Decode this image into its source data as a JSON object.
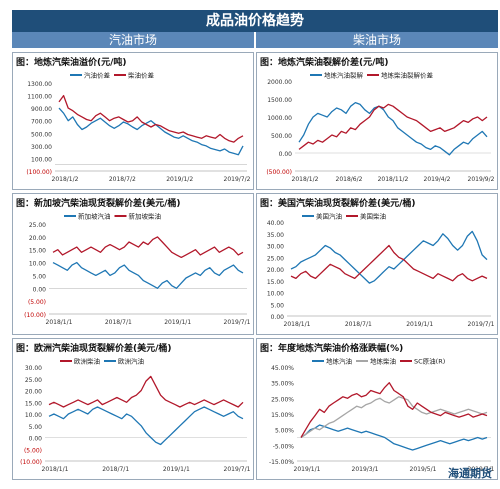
{
  "header": {
    "title": "成品油价格趋势",
    "left_section": "汽油市场",
    "right_section": "柴油市场"
  },
  "watermark": "海通期货",
  "chart_data": [
    {
      "id": "p1",
      "type": "line",
      "title": "图：地炼汽柴油溢价(元/吨)",
      "yticks": [
        "1300.00",
        "1100.00",
        "900.00",
        "700.00",
        "500.00",
        "300.00",
        "100.00",
        "(100.00)"
      ],
      "ylim": [
        -100,
        1300
      ],
      "xticks": [
        "2018/1/2",
        "2018/7/2",
        "2019/1/2",
        "2019/7/2"
      ],
      "series": [
        {
          "name": "汽油价差",
          "color": "#1f77b4",
          "values": [
            900,
            820,
            700,
            760,
            640,
            560,
            600,
            660,
            700,
            740,
            680,
            620,
            580,
            620,
            680,
            650,
            600,
            560,
            620,
            660,
            700,
            640,
            580,
            520,
            480,
            440,
            420,
            460,
            420,
            380,
            360,
            320,
            300,
            260,
            240,
            220,
            250,
            200,
            180,
            160,
            300
          ]
        },
        {
          "name": "柴油价差",
          "color": "#b2182b",
          "values": [
            1000,
            1100,
            900,
            860,
            800,
            760,
            720,
            700,
            780,
            820,
            760,
            700,
            740,
            760,
            720,
            680,
            700,
            760,
            680,
            640,
            600,
            640,
            620,
            580,
            540,
            520,
            500,
            520,
            480,
            460,
            440,
            420,
            460,
            440,
            420,
            480,
            420,
            380,
            360,
            420,
            460
          ]
        }
      ]
    },
    {
      "id": "p2",
      "type": "line",
      "title": "图：地炼汽柴油裂解价差(元/吨)",
      "yticks": [
        "2000.00",
        "1500.00",
        "1000.00",
        "500.00",
        "0.00",
        "(500.00)"
      ],
      "ylim": [
        -500,
        2000
      ],
      "xticks": [
        "2018/1/2",
        "2018/6/2",
        "2018/11/2",
        "2019/4/2",
        "2019/9/2"
      ],
      "series": [
        {
          "name": "地炼汽油裂解",
          "color": "#1f77b4",
          "values": [
            300,
            500,
            800,
            1000,
            1100,
            1050,
            1000,
            1150,
            1250,
            1200,
            1100,
            1300,
            1400,
            1350,
            1200,
            1100,
            1250,
            1300,
            1200,
            1000,
            900,
            700,
            600,
            500,
            400,
            300,
            250,
            150,
            100,
            200,
            150,
            50,
            -50,
            100,
            200,
            300,
            250,
            400,
            500,
            600,
            450
          ]
        },
        {
          "name": "地炼柴油裂解价差",
          "color": "#b2182b",
          "values": [
            100,
            200,
            300,
            250,
            350,
            300,
            400,
            500,
            450,
            600,
            550,
            700,
            650,
            800,
            900,
            1000,
            1200,
            1300,
            1250,
            1350,
            1300,
            1200,
            1100,
            1000,
            950,
            900,
            800,
            700,
            600,
            650,
            700,
            600,
            650,
            700,
            800,
            900,
            850,
            950,
            1000,
            900,
            1000
          ]
        }
      ]
    },
    {
      "id": "p3",
      "type": "line",
      "title": "图：新加坡汽柴油现货裂解价差(美元/桶)",
      "yticks": [
        "25.00",
        "20.00",
        "15.00",
        "10.00",
        "5.00",
        "0.00",
        "(5.00)",
        "(10.00)"
      ],
      "ylim": [
        -10,
        25
      ],
      "xticks": [
        "2018/1/1",
        "2018/7/1",
        "2019/1/1",
        "2019/7/1"
      ],
      "series": [
        {
          "name": "新加坡汽油",
          "color": "#1f77b4",
          "values": [
            10,
            9,
            8,
            7,
            9,
            10,
            8,
            7,
            6,
            5,
            6,
            7,
            5,
            6,
            8,
            9,
            7,
            6,
            5,
            3,
            2,
            1,
            0,
            2,
            3,
            1,
            0,
            2,
            4,
            5,
            6,
            5,
            7,
            8,
            6,
            5,
            7,
            8,
            9,
            7,
            6
          ]
        },
        {
          "name": "新加坡柴油",
          "color": "#b2182b",
          "values": [
            14,
            15,
            13,
            14,
            15,
            16,
            14,
            15,
            16,
            15,
            14,
            16,
            17,
            16,
            15,
            16,
            18,
            17,
            16,
            18,
            17,
            19,
            20,
            18,
            16,
            14,
            13,
            12,
            13,
            14,
            15,
            13,
            14,
            15,
            16,
            14,
            15,
            16,
            15,
            13,
            14
          ]
        }
      ]
    },
    {
      "id": "p4",
      "type": "line",
      "title": "图：美国汽柴油现货裂解价差(美元/桶)",
      "yticks": [
        "40.00",
        "35.00",
        "30.00",
        "25.00",
        "20.00",
        "15.00",
        "10.00",
        "5.00",
        "0.00"
      ],
      "ylim": [
        0,
        40
      ],
      "xticks": [
        "2018/1/1",
        "2018/7/1",
        "2019/1/1",
        "2019/7/1"
      ],
      "series": [
        {
          "name": "美国汽油",
          "color": "#1f77b4",
          "values": [
            20,
            21,
            23,
            24,
            25,
            26,
            28,
            30,
            29,
            27,
            26,
            24,
            22,
            20,
            18,
            16,
            14,
            15,
            17,
            19,
            21,
            20,
            22,
            24,
            26,
            28,
            30,
            32,
            31,
            30,
            32,
            35,
            33,
            30,
            28,
            30,
            34,
            36,
            32,
            26,
            24
          ]
        },
        {
          "name": "美国柴油",
          "color": "#b2182b",
          "values": [
            17,
            16,
            18,
            19,
            17,
            16,
            18,
            20,
            22,
            21,
            20,
            18,
            17,
            16,
            18,
            20,
            22,
            24,
            26,
            28,
            30,
            27,
            25,
            24,
            22,
            20,
            19,
            18,
            17,
            16,
            18,
            17,
            16,
            15,
            17,
            18,
            16,
            15,
            16,
            17,
            16
          ]
        }
      ]
    },
    {
      "id": "p5",
      "type": "line",
      "title": "图：欧洲汽柴油现货裂解价差(美元/桶)",
      "yticks": [
        "30.00",
        "25.00",
        "20.00",
        "15.00",
        "10.00",
        "5.00",
        "0.00",
        "(5.00)",
        "(10.00)"
      ],
      "ylim": [
        -10,
        30
      ],
      "xticks": [
        "2018/1/1",
        "2018/7/1",
        "2019/1/1",
        "2019/7/1"
      ],
      "series": [
        {
          "name": "欧洲柴油",
          "color": "#b2182b",
          "values": [
            14,
            15,
            14,
            13,
            14,
            15,
            16,
            15,
            14,
            15,
            16,
            14,
            15,
            16,
            17,
            16,
            15,
            17,
            18,
            20,
            24,
            26,
            22,
            18,
            16,
            15,
            14,
            13,
            14,
            15,
            14,
            15,
            16,
            15,
            14,
            15,
            16,
            15,
            14,
            13,
            15
          ]
        },
        {
          "name": "欧洲汽油",
          "color": "#1f77b4",
          "values": [
            9,
            10,
            9,
            8,
            10,
            11,
            12,
            11,
            10,
            12,
            13,
            12,
            11,
            10,
            9,
            8,
            10,
            9,
            7,
            5,
            2,
            0,
            -2,
            -3,
            -1,
            1,
            3,
            5,
            7,
            9,
            11,
            12,
            13,
            12,
            11,
            10,
            9,
            10,
            11,
            9,
            8
          ]
        }
      ]
    },
    {
      "id": "p6",
      "type": "line",
      "title": "图：年度地炼汽柴油价格涨跌幅(%)",
      "yticks": [
        "45.00%",
        "35.00%",
        "25.00%",
        "15.00%",
        "5.00%",
        "-5.00%",
        "-15.00%"
      ],
      "ylim": [
        -15,
        45
      ],
      "xticks": [
        "2019/1/1",
        "2019/3/1",
        "2019/5/1",
        "2019/7/1"
      ],
      "series": [
        {
          "name": "地炼汽油",
          "color": "#1f77b4",
          "values": [
            0,
            2,
            5,
            6,
            8,
            7,
            6,
            5,
            4,
            5,
            6,
            5,
            4,
            3,
            4,
            3,
            2,
            1,
            0,
            -2,
            -4,
            -5,
            -6,
            -7,
            -8,
            -7,
            -6,
            -5,
            -4,
            -3,
            -2,
            -3,
            -4,
            -3,
            -2,
            -1,
            -2,
            -1,
            0,
            -1,
            0
          ]
        },
        {
          "name": "地炼柴油",
          "color": "#a6a6a6",
          "values": [
            0,
            2,
            4,
            6,
            5,
            7,
            9,
            10,
            12,
            14,
            16,
            18,
            20,
            19,
            21,
            22,
            24,
            25,
            23,
            22,
            24,
            26,
            25,
            24,
            20,
            18,
            16,
            15,
            16,
            17,
            18,
            17,
            16,
            15,
            16,
            17,
            18,
            17,
            16,
            15,
            16
          ]
        },
        {
          "name": "SC原油(R)",
          "color": "#b2182b",
          "values": [
            0,
            5,
            10,
            14,
            18,
            16,
            20,
            22,
            24,
            26,
            25,
            27,
            28,
            26,
            27,
            30,
            29,
            28,
            32,
            35,
            30,
            28,
            26,
            20,
            18,
            22,
            20,
            18,
            16,
            15,
            14,
            16,
            15,
            14,
            13,
            14,
            15,
            13,
            14,
            15,
            14
          ]
        }
      ]
    }
  ]
}
